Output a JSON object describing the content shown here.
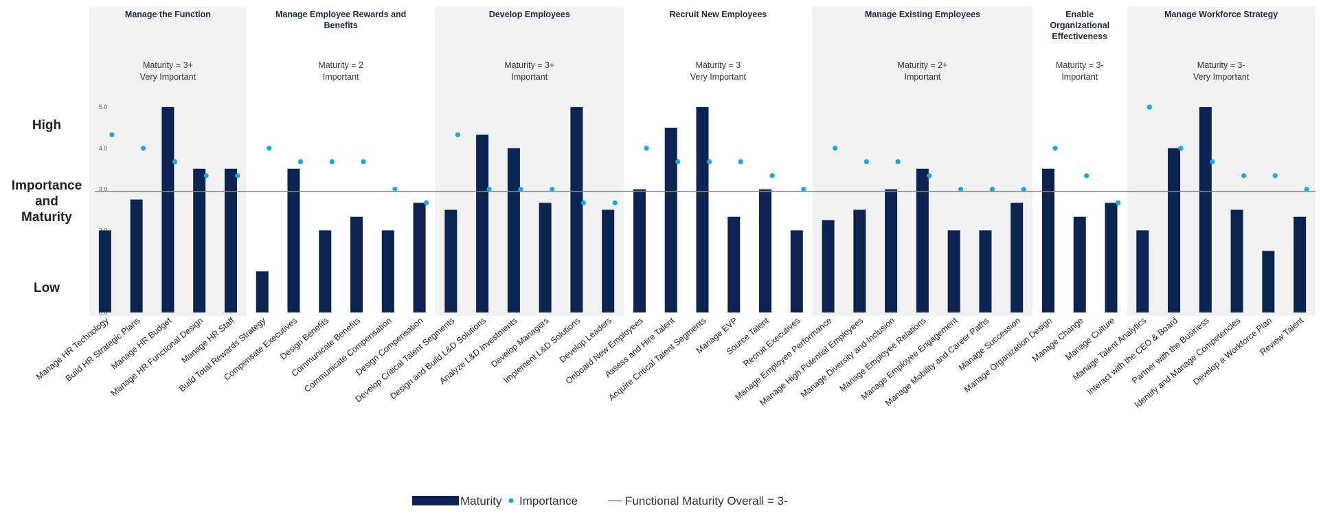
{
  "chart_data": {
    "type": "bar",
    "y_axis": {
      "high_label": "High",
      "mid_label": [
        "Importance",
        "and",
        "Maturity"
      ],
      "low_label": "Low",
      "ticks": [
        "0.0",
        "1.0",
        "2.0",
        "3.0",
        "4.0",
        "5.0"
      ],
      "ylim": [
        0,
        5
      ]
    },
    "reference_line": {
      "name": "Functional Maturity Overall = 3-",
      "value": 2.95
    },
    "groups": [
      {
        "title": [
          "Manage the Function"
        ],
        "subtitle": [
          "Maturity = 3+",
          "Very Important"
        ],
        "shaded": true
      },
      {
        "title": [
          "Manage Employee Rewards and",
          "Benefits"
        ],
        "subtitle": [
          "Maturity = 2",
          "Important"
        ],
        "shaded": false
      },
      {
        "title": [
          "Develop Employees"
        ],
        "subtitle": [
          "Maturity = 3+",
          "Important"
        ],
        "shaded": true
      },
      {
        "title": [
          "Recruit New Employees"
        ],
        "subtitle": [
          "Maturity = 3",
          "Very Important"
        ],
        "shaded": false
      },
      {
        "title": [
          "Manage Existing Employees"
        ],
        "subtitle": [
          "Maturity = 2+",
          "Important"
        ],
        "shaded": true
      },
      {
        "title": [
          "Enable",
          "Organizational",
          "Effectiveness"
        ],
        "subtitle": [
          "Maturity = 3-",
          "Important"
        ],
        "shaded": false
      },
      {
        "title": [
          "Manage Workforce Strategy"
        ],
        "subtitle": [
          "Maturity = 3-",
          "Very Important"
        ],
        "shaded": true
      }
    ],
    "categories": [
      {
        "label": "Manage HR Technology",
        "group": 0,
        "maturity": 2.0,
        "importance": 4.33
      },
      {
        "label": "Build HR Strategic Plans",
        "group": 0,
        "maturity": 2.75,
        "importance": 4.0
      },
      {
        "label": "Manage HR Budget",
        "group": 0,
        "maturity": 5.0,
        "importance": 3.67
      },
      {
        "label": "Manage HR Functional Design",
        "group": 0,
        "maturity": 3.5,
        "importance": 3.33
      },
      {
        "label": "Manage HR Staff",
        "group": 0,
        "maturity": 3.5,
        "importance": 3.33
      },
      {
        "label": "Build Total Rewards Strategy",
        "group": 1,
        "maturity": 1.0,
        "importance": 4.0
      },
      {
        "label": "Compensate Executives",
        "group": 1,
        "maturity": 3.5,
        "importance": 3.67
      },
      {
        "label": "Design Benefits",
        "group": 1,
        "maturity": 2.0,
        "importance": 3.67
      },
      {
        "label": "Communicate Benefits",
        "group": 1,
        "maturity": 2.33,
        "importance": 3.67
      },
      {
        "label": "Communicate Compensation",
        "group": 1,
        "maturity": 2.0,
        "importance": 3.0
      },
      {
        "label": "Design Compensation",
        "group": 1,
        "maturity": 2.67,
        "importance": 2.67
      },
      {
        "label": "Develop Critical Talent Segments",
        "group": 2,
        "maturity": 2.5,
        "importance": 4.33
      },
      {
        "label": "Design and Build L&D Solutions",
        "group": 2,
        "maturity": 4.33,
        "importance": 3.0
      },
      {
        "label": "Analyze L&D Investments",
        "group": 2,
        "maturity": 4.0,
        "importance": 3.0
      },
      {
        "label": "Develop Managers",
        "group": 2,
        "maturity": 2.67,
        "importance": 3.0
      },
      {
        "label": "Implement L&D Solutions",
        "group": 2,
        "maturity": 5.0,
        "importance": 2.67
      },
      {
        "label": "Develop Leaders",
        "group": 2,
        "maturity": 2.5,
        "importance": 2.67
      },
      {
        "label": "Onboard New Employees",
        "group": 3,
        "maturity": 3.0,
        "importance": 4.0
      },
      {
        "label": "Assess and Hire Talent",
        "group": 3,
        "maturity": 4.5,
        "importance": 3.67
      },
      {
        "label": "Acquire Critical Talent Segments",
        "group": 3,
        "maturity": 5.0,
        "importance": 3.67
      },
      {
        "label": "Manage EVP",
        "group": 3,
        "maturity": 2.33,
        "importance": 3.67
      },
      {
        "label": "Source Talent",
        "group": 3,
        "maturity": 3.0,
        "importance": 3.33
      },
      {
        "label": "Recruit Executives",
        "group": 3,
        "maturity": 2.0,
        "importance": 3.0
      },
      {
        "label": "Manage Employee Performance",
        "group": 4,
        "maturity": 2.25,
        "importance": 4.0
      },
      {
        "label": "Manage High Potential Employees",
        "group": 4,
        "maturity": 2.5,
        "importance": 3.67
      },
      {
        "label": "Manage Diversity and Inclusion",
        "group": 4,
        "maturity": 3.0,
        "importance": 3.67
      },
      {
        "label": "Manage Employee Relations",
        "group": 4,
        "maturity": 3.5,
        "importance": 3.33
      },
      {
        "label": "Manage Employee Engagement",
        "group": 4,
        "maturity": 2.0,
        "importance": 3.0
      },
      {
        "label": "Manage Mobility and Career Paths",
        "group": 4,
        "maturity": 2.0,
        "importance": 3.0
      },
      {
        "label": "Manage Succession",
        "group": 4,
        "maturity": 2.67,
        "importance": 3.0
      },
      {
        "label": "Manage Organization Design",
        "group": 5,
        "maturity": 3.5,
        "importance": 4.0
      },
      {
        "label": "Manage Change",
        "group": 5,
        "maturity": 2.33,
        "importance": 3.33
      },
      {
        "label": "Manage Culture",
        "group": 5,
        "maturity": 2.67,
        "importance": 2.67
      },
      {
        "label": "Manage Talent Analytics",
        "group": 6,
        "maturity": 2.0,
        "importance": 5.0
      },
      {
        "label": "Interact with the CEO & Board",
        "group": 6,
        "maturity": 4.0,
        "importance": 4.0
      },
      {
        "label": "Partner with the Business",
        "group": 6,
        "maturity": 5.0,
        "importance": 3.67
      },
      {
        "label": "Identify and Manage Competencies",
        "group": 6,
        "maturity": 2.5,
        "importance": 3.33
      },
      {
        "label": "Develop a Workforce Plan",
        "group": 6,
        "maturity": 1.5,
        "importance": 3.33
      },
      {
        "label": "Review Talent",
        "group": 6,
        "maturity": 2.33,
        "importance": 3.0
      }
    ],
    "legend": {
      "maturity": "Maturity",
      "importance": "Importance",
      "line": "Functional Maturity Overall = 3-",
      "placement": "bottom-center"
    },
    "colors": {
      "bar": "#0b2350",
      "dot": "#1aa7de",
      "band": "#f2f2f2",
      "line": "#888888"
    }
  }
}
